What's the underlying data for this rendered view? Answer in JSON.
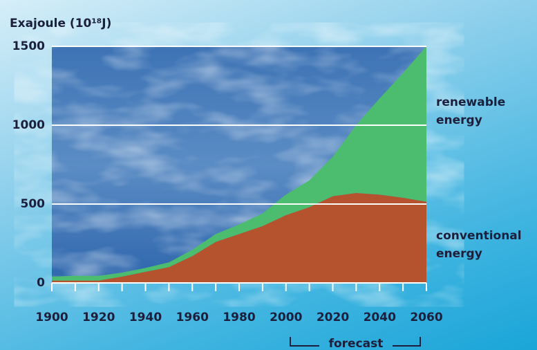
{
  "chart_data": {
    "type": "stacked-area",
    "y_label": "Exajoule (10¹⁸J)",
    "annotation": "forecast",
    "x": [
      1900,
      1910,
      1920,
      1930,
      1940,
      1950,
      1960,
      1970,
      1980,
      1990,
      2000,
      2010,
      2020,
      2030,
      2040,
      2050,
      2060
    ],
    "series": [
      {
        "name": "conventional energy",
        "color": "#b5532f",
        "values": [
          15,
          15,
          15,
          40,
          70,
          100,
          170,
          260,
          310,
          360,
          430,
          480,
          550,
          570,
          560,
          540,
          515
        ]
      },
      {
        "name": "renewable energy",
        "color": "#4cbd6e",
        "values": [
          25,
          30,
          30,
          25,
          25,
          30,
          40,
          50,
          60,
          80,
          130,
          170,
          250,
          430,
          610,
          790,
          985
        ]
      }
    ],
    "xlim": [
      1900,
      2060
    ],
    "xticks": [
      1900,
      1920,
      1940,
      1960,
      1980,
      2000,
      2020,
      2040,
      2060
    ],
    "ylim": [
      0,
      1500
    ],
    "yticks": [
      0,
      500,
      1000,
      1500
    ],
    "grid": true
  }
}
